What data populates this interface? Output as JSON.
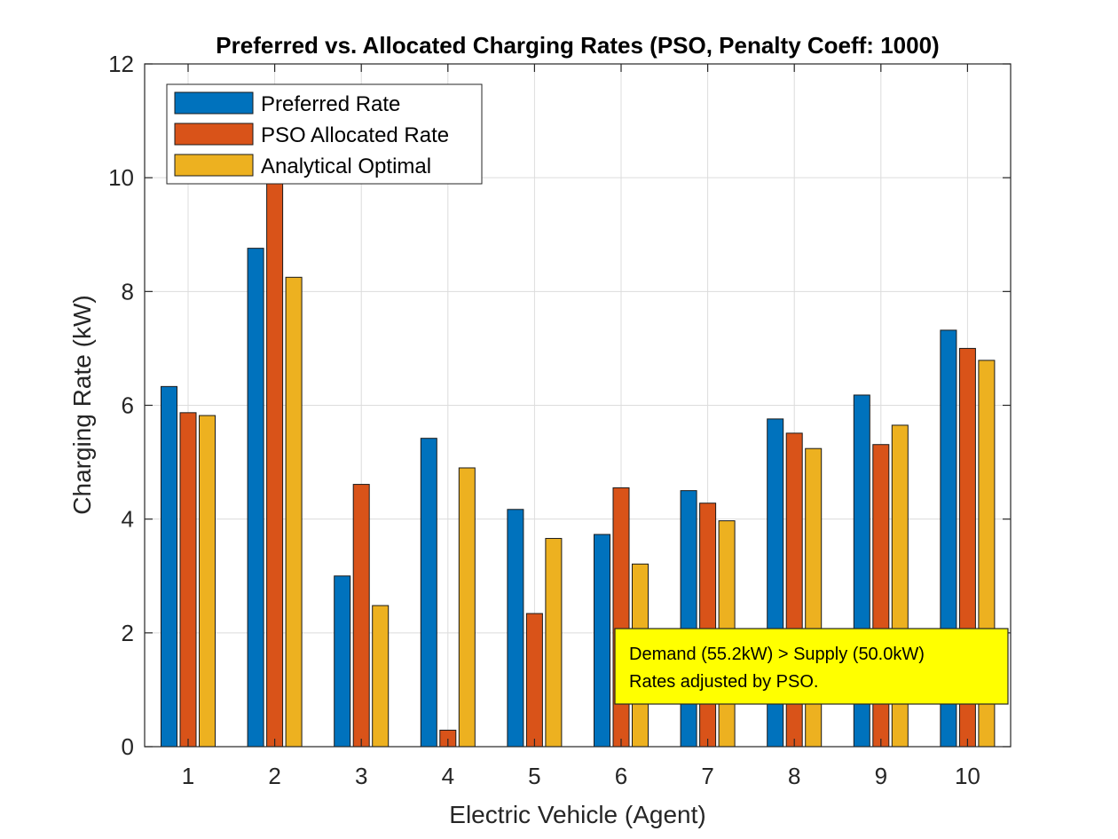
{
  "chart_data": {
    "type": "bar",
    "title": "Preferred vs. Allocated Charging Rates (PSO, Penalty Coeff: 1000)",
    "xlabel": "Electric Vehicle (Agent)",
    "ylabel": "Charging Rate (kW)",
    "categories": [
      "1",
      "2",
      "3",
      "4",
      "5",
      "6",
      "7",
      "8",
      "9",
      "10"
    ],
    "ylim": [
      0,
      12
    ],
    "yticks": [
      "0",
      "2",
      "4",
      "6",
      "8",
      "10",
      "12"
    ],
    "grid": true,
    "legend_position": "top-left",
    "series": [
      {
        "name": "Preferred Rate",
        "color": "#0072BD",
        "values": [
          6.33,
          8.76,
          3.0,
          5.42,
          4.17,
          3.73,
          4.5,
          5.76,
          6.18,
          7.32
        ]
      },
      {
        "name": "PSO Allocated Rate",
        "color": "#D95319",
        "values": [
          5.87,
          10.0,
          4.61,
          0.29,
          2.34,
          4.55,
          4.28,
          5.51,
          5.31,
          7.0
        ]
      },
      {
        "name": "Analytical Optimal",
        "color": "#EDB120",
        "values": [
          5.82,
          8.25,
          2.48,
          4.9,
          3.66,
          3.21,
          3.97,
          5.24,
          5.65,
          6.79
        ]
      }
    ],
    "annotation": {
      "lines": [
        "Demand (55.2kW) > Supply (50.0kW)",
        "Rates adjusted by PSO."
      ],
      "background": "#FFFF00"
    }
  }
}
